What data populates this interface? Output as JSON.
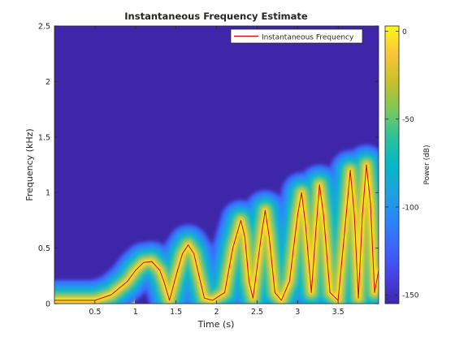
{
  "chart_data": {
    "type": "heatmap",
    "title": "Instantaneous Frequency Estimate",
    "xlabel": "Time (s)",
    "ylabel": "Frequency (kHz)",
    "xlim": [
      0,
      4
    ],
    "ylim": [
      0,
      2.5
    ],
    "xticks": [
      0.5,
      1,
      1.5,
      2,
      2.5,
      3,
      3.5
    ],
    "xtick_labels": [
      "0.5",
      "1",
      "1.5",
      "2",
      "2.5",
      "3",
      "3.5"
    ],
    "yticks": [
      0,
      0.5,
      1,
      1.5,
      2,
      2.5
    ],
    "ytick_labels": [
      "0",
      "0.5",
      "1",
      "1.5",
      "2",
      "2.5"
    ],
    "grid": false,
    "legend": {
      "placement": "top-right",
      "entries": [
        "Instantaneous Frequency"
      ]
    },
    "colorbar": {
      "label": "Power (dB)",
      "range": [
        -155,
        3
      ],
      "ticks": [
        0,
        -50,
        -100,
        -150
      ],
      "tick_labels": [
        "0",
        "-50",
        "-100",
        "-150"
      ],
      "colormap": "parula"
    },
    "series": [
      {
        "name": "Instantaneous Frequency",
        "color": "#d40000",
        "x": [
          0.0,
          0.5,
          0.7,
          0.9,
          1.0,
          1.1,
          1.2,
          1.3,
          1.35,
          1.42,
          1.5,
          1.58,
          1.65,
          1.72,
          1.8,
          1.85,
          1.95,
          2.1,
          2.2,
          2.3,
          2.35,
          2.4,
          2.45,
          2.55,
          2.6,
          2.65,
          2.72,
          2.8,
          2.9,
          3.0,
          3.05,
          3.1,
          3.17,
          3.22,
          3.27,
          3.32,
          3.4,
          3.5,
          3.6,
          3.65,
          3.7,
          3.75,
          3.8,
          3.85,
          3.9,
          3.95,
          4.0
        ],
        "y": [
          0.03,
          0.03,
          0.08,
          0.2,
          0.3,
          0.37,
          0.38,
          0.3,
          0.2,
          0.03,
          0.25,
          0.45,
          0.53,
          0.45,
          0.2,
          0.05,
          0.03,
          0.1,
          0.5,
          0.75,
          0.6,
          0.2,
          0.05,
          0.6,
          0.84,
          0.6,
          0.1,
          0.03,
          0.2,
          0.8,
          1.0,
          0.7,
          0.1,
          0.6,
          1.07,
          0.8,
          0.1,
          0.03,
          0.8,
          1.2,
          0.8,
          0.05,
          0.8,
          1.25,
          0.9,
          0.1,
          0.3
        ]
      }
    ]
  }
}
